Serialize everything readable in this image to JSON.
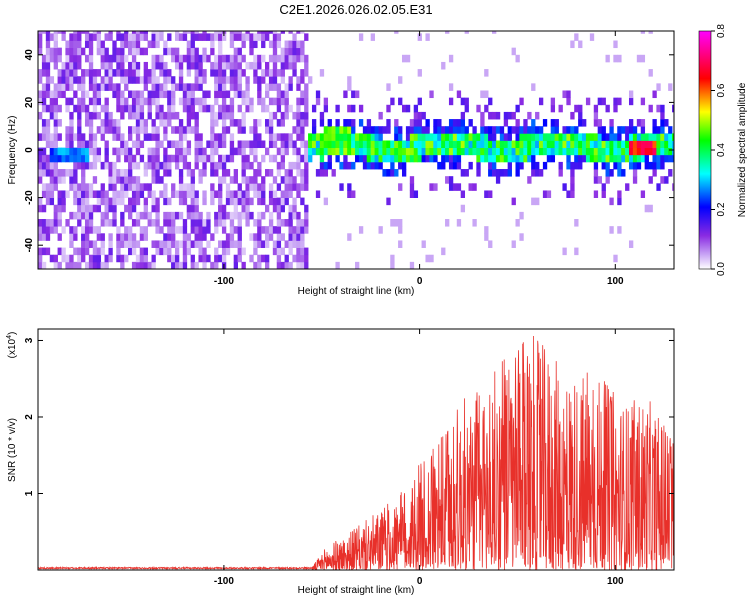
{
  "figure": {
    "title": "C2E1.2026.026.02.05.E31"
  },
  "chart_data": [
    {
      "type": "heatmap",
      "title": "C2E1.2026.026.02.05.E31",
      "xlabel": "Height of straight line (km)",
      "ylabel": "Frequency (Hz)",
      "xlim": [
        -195,
        130
      ],
      "ylim": [
        -50,
        50
      ],
      "x_ticks": [
        {
          "value": -100,
          "label": "-100"
        },
        {
          "value": 0,
          "label": "0"
        },
        {
          "value": 100,
          "label": "100"
        }
      ],
      "y_ticks": [
        {
          "value": -40,
          "label": "-40"
        },
        {
          "value": -20,
          "label": "-20"
        },
        {
          "value": 0,
          "label": "0"
        },
        {
          "value": 20,
          "label": "20"
        },
        {
          "value": 40,
          "label": "40"
        }
      ],
      "colorbar": {
        "label": "Normalized spectral amplitude",
        "range": [
          0,
          0.8
        ],
        "ticks": [
          {
            "value": 0.0,
            "label": "0.0"
          },
          {
            "value": 0.2,
            "label": "0.2"
          },
          {
            "value": 0.4,
            "label": "0.4"
          },
          {
            "value": 0.6,
            "label": "0.6"
          },
          {
            "value": 0.8,
            "label": "0.8"
          }
        ],
        "colors": [
          "#ffffff",
          "#8a2be2",
          "#0000ff",
          "#00ffff",
          "#00ff00",
          "#ffff00",
          "#ff0000",
          "#ff00ff"
        ]
      },
      "regions": [
        {
          "x_start": -195,
          "x_end": -58,
          "pattern": "broadband noise, amplitude about 0.05-0.15 across all frequencies"
        },
        {
          "x_start": -58,
          "x_end": 130,
          "pattern": "narrowband signal centered near 0 Hz, peaks about 0.4-0.6 near 0 Hz, strongest near x=113"
        }
      ]
    },
    {
      "type": "line",
      "xlabel": "Height of straight line (km)",
      "ylabel": "SNR (10 * v/v)",
      "y_multiplier": "(x10",
      "y_multiplier_exp": "4",
      "xlim": [
        -195,
        130
      ],
      "ylim": [
        0,
        3.15
      ],
      "x_ticks": [
        {
          "value": -100,
          "label": "-100"
        },
        {
          "value": 0,
          "label": "0"
        },
        {
          "value": 100,
          "label": "100"
        }
      ],
      "y_ticks": [
        {
          "value": 1,
          "label": "1"
        },
        {
          "value": 2,
          "label": "2"
        },
        {
          "value": 3,
          "label": "3"
        }
      ],
      "series": [
        {
          "color": "#e8302a",
          "envelope": [
            {
              "x": -195,
              "y": 0.02
            },
            {
              "x": -100,
              "y": 0.03
            },
            {
              "x": -55,
              "y": 0.04
            },
            {
              "x": -48,
              "y": 0.3
            },
            {
              "x": -30,
              "y": 0.6
            },
            {
              "x": -10,
              "y": 1.0
            },
            {
              "x": 0,
              "y": 1.4
            },
            {
              "x": 10,
              "y": 1.7
            },
            {
              "x": 20,
              "y": 2.2
            },
            {
              "x": 30,
              "y": 2.4
            },
            {
              "x": 40,
              "y": 2.7
            },
            {
              "x": 50,
              "y": 2.9
            },
            {
              "x": 57,
              "y": 3.1
            },
            {
              "x": 65,
              "y": 2.9
            },
            {
              "x": 75,
              "y": 2.6
            },
            {
              "x": 90,
              "y": 2.6
            },
            {
              "x": 105,
              "y": 2.2
            },
            {
              "x": 115,
              "y": 2.3
            },
            {
              "x": 130,
              "y": 1.8
            }
          ]
        }
      ]
    }
  ]
}
